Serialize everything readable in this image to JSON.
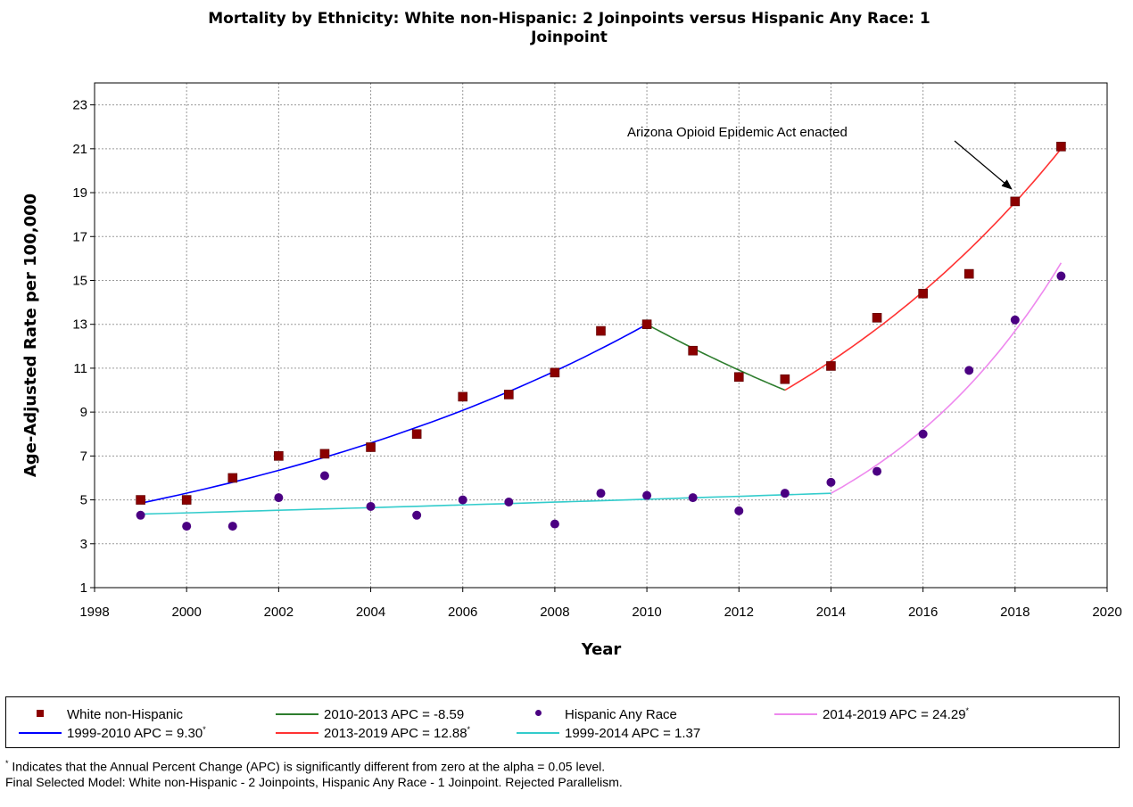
{
  "chart_data": {
    "type": "scatter",
    "title": "Mortality by Ethnicity: White non-Hispanic: 2 Joinpoints  versus  Hispanic Any Race: 1 Joinpoint",
    "title_lines": [
      "Mortality by Ethnicity: White non-Hispanic: 2 Joinpoints  versus  Hispanic Any Race: 1",
      "Joinpoint"
    ],
    "xlabel": "Year",
    "ylabel": "Age-Adjusted Rate per 100,000",
    "xlim": [
      1998,
      2020
    ],
    "ylim": [
      1,
      24
    ],
    "x_ticks": [
      "1998",
      "2000",
      "2002",
      "2004",
      "2006",
      "2008",
      "2010",
      "2012",
      "2014",
      "2016",
      "2018",
      "2020"
    ],
    "y_ticks": [
      "1",
      "3",
      "5",
      "7",
      "9",
      "11",
      "13",
      "15",
      "17",
      "19",
      "21",
      "23"
    ],
    "grid": true,
    "observed": [
      {
        "name": "White non-Hispanic",
        "marker": "square",
        "color": "#8b0000",
        "x": [
          1999,
          2000,
          2001,
          2002,
          2003,
          2004,
          2005,
          2006,
          2007,
          2008,
          2009,
          2010,
          2011,
          2012,
          2013,
          2014,
          2015,
          2016,
          2017,
          2018,
          2019
        ],
        "y": [
          5.0,
          5.0,
          6.0,
          7.0,
          7.1,
          7.4,
          8.0,
          9.7,
          9.8,
          10.8,
          12.7,
          13.0,
          11.8,
          10.6,
          10.5,
          11.1,
          13.3,
          14.4,
          15.3,
          18.6,
          21.1
        ]
      },
      {
        "name": "Hispanic Any Race",
        "marker": "circle",
        "color": "#4b0082",
        "x": [
          1999,
          2000,
          2001,
          2002,
          2003,
          2004,
          2005,
          2006,
          2007,
          2008,
          2009,
          2010,
          2011,
          2012,
          2013,
          2014,
          2015,
          2016,
          2017,
          2018,
          2019
        ],
        "y": [
          4.3,
          3.8,
          3.8,
          5.1,
          6.1,
          4.7,
          4.3,
          5.0,
          4.9,
          3.9,
          5.3,
          5.2,
          5.1,
          4.5,
          5.3,
          5.8,
          6.3,
          8.0,
          10.9,
          13.2,
          15.2
        ]
      }
    ],
    "fitted": [
      {
        "name": "1999-2010 APC =  9.30",
        "significant": true,
        "color": "#0000ff",
        "start": [
          1999,
          4.85
        ],
        "end": [
          2010,
          13.0
        ],
        "apc": 9.3
      },
      {
        "name": "2010-2013 APC = -8.59",
        "significant": false,
        "color": "#2e7d2e",
        "start": [
          2010,
          13.0
        ],
        "end": [
          2013,
          10.0
        ],
        "apc": -8.59
      },
      {
        "name": "2013-2019 APC = 12.88",
        "significant": true,
        "color": "#ff3333",
        "start": [
          2013,
          10.0
        ],
        "end": [
          2019,
          21.0
        ],
        "apc": 12.88
      },
      {
        "name": "1999-2014 APC =  1.37",
        "significant": false,
        "color": "#33cccc",
        "start": [
          1999,
          4.35
        ],
        "end": [
          2014,
          5.3
        ],
        "apc": 1.37
      },
      {
        "name": "2014-2019 APC = 24.29",
        "significant": true,
        "color": "#ee88ee",
        "start": [
          2014,
          5.3
        ],
        "end": [
          2019,
          15.8
        ],
        "apc": 24.29
      }
    ],
    "annotation": {
      "text": "Arizona Opioid Epidemic Act enacted",
      "arrow_to": [
        2018,
        18.6
      ]
    },
    "legend_placement": "bottom"
  },
  "legend": {
    "items": [
      {
        "label": "White non-Hispanic",
        "kind": "square",
        "color": "#8b0000",
        "star": ""
      },
      {
        "label": "2010-2013 APC  = -8.59",
        "kind": "line",
        "color": "#2e7d2e",
        "star": ""
      },
      {
        "label": "Hispanic Any Race",
        "kind": "dot",
        "color": "#4b0082",
        "star": ""
      },
      {
        "label": "2014-2019 APC  = 24.29",
        "kind": "line",
        "color": "#ee88ee",
        "star": "*"
      },
      {
        "label": "1999-2010 APC  =  9.30",
        "kind": "line",
        "color": "#0000ff",
        "star": "*"
      },
      {
        "label": "2013-2019 APC  = 12.88",
        "kind": "line",
        "color": "#ff3333",
        "star": "*"
      },
      {
        "label": "1999-2014 APC  =  1.37",
        "kind": "line",
        "color": "#33cccc",
        "star": ""
      }
    ]
  },
  "footnotes": {
    "line1_star": "*",
    "line1": " Indicates that the Annual Percent Change (APC) is significantly different from zero at the alpha = 0.05 level.",
    "line2": "Final Selected Model: White non-Hispanic - 2 Joinpoints, Hispanic Any Race - 1 Joinpoint. Rejected Parallelism."
  }
}
